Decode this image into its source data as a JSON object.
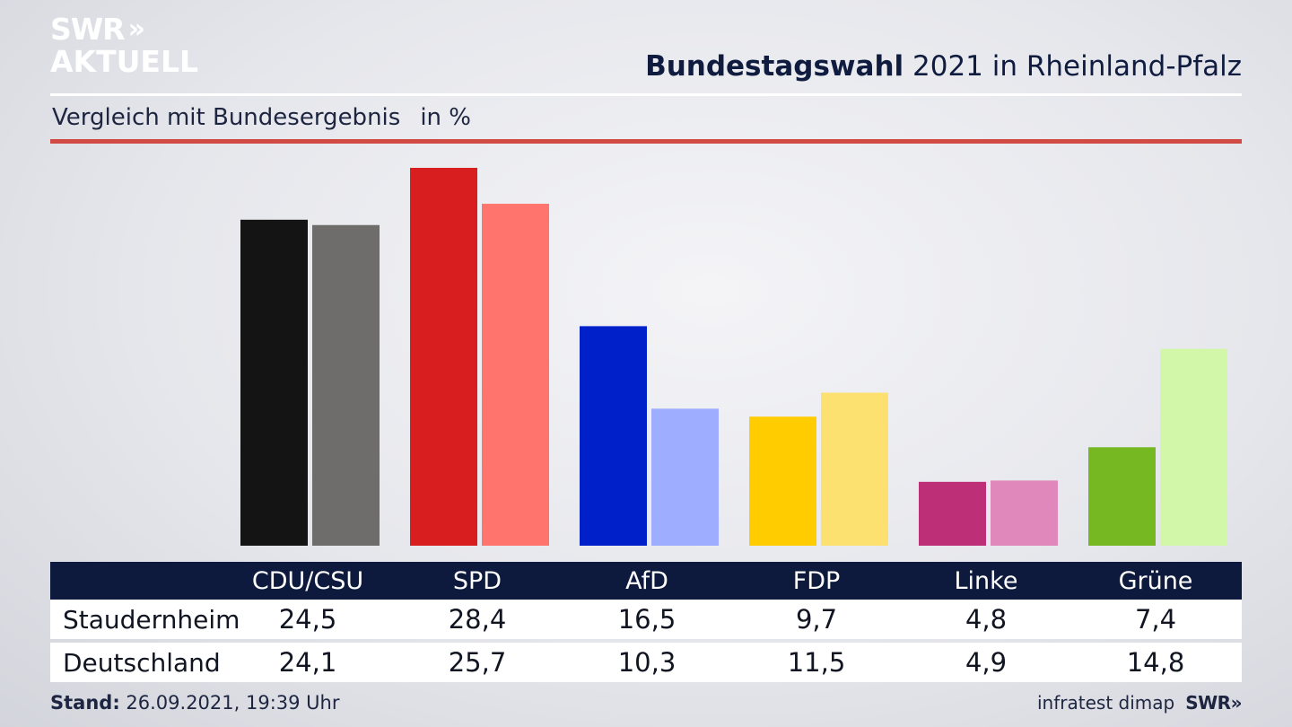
{
  "header": {
    "logo_top": "SWR",
    "logo_chevrons": "»",
    "logo_bottom": "AKTUELL",
    "title_bold": "Bundestagswahl",
    "title_rest": " 2021 in Rheinland-Pfalz",
    "subtitle": "Vergleich mit Bundesergebnis",
    "unit": "in %"
  },
  "chart_data": {
    "type": "bar",
    "categories": [
      "CDU/CSU",
      "SPD",
      "AfD",
      "FDP",
      "Linke",
      "Grüne"
    ],
    "series": [
      {
        "name": "Staudernheim",
        "values": [
          24.5,
          28.4,
          16.5,
          9.7,
          4.8,
          7.4
        ],
        "colors": [
          "#141414",
          "#d81e1e",
          "#0021c9",
          "#ffcc00",
          "#bd2f76",
          "#76b821"
        ]
      },
      {
        "name": "Deutschland",
        "values": [
          24.1,
          25.7,
          10.3,
          11.5,
          4.9,
          14.8
        ],
        "colors": [
          "#6f6d6b",
          "#ff756e",
          "#9eadff",
          "#fce170",
          "#e088bb",
          "#d3f7a9"
        ]
      }
    ],
    "ylim": [
      0,
      28.4
    ],
    "grid": false
  },
  "table": {
    "headers": [
      "CDU/CSU",
      "SPD",
      "AfD",
      "FDP",
      "Linke",
      "Grüne"
    ],
    "rows": [
      {
        "label": "Staudernheim",
        "values": [
          "24,5",
          "28,4",
          "16,5",
          "9,7",
          "4,8",
          "7,4"
        ]
      },
      {
        "label": "Deutschland",
        "values": [
          "24,1",
          "25,7",
          "10,3",
          "11,5",
          "4,9",
          "14,8"
        ]
      }
    ]
  },
  "footer": {
    "stand_label": "Stand:",
    "stand_value": " 26.09.2021, 19:39 Uhr",
    "source": "infratest dimap",
    "brand": "SWR»"
  }
}
